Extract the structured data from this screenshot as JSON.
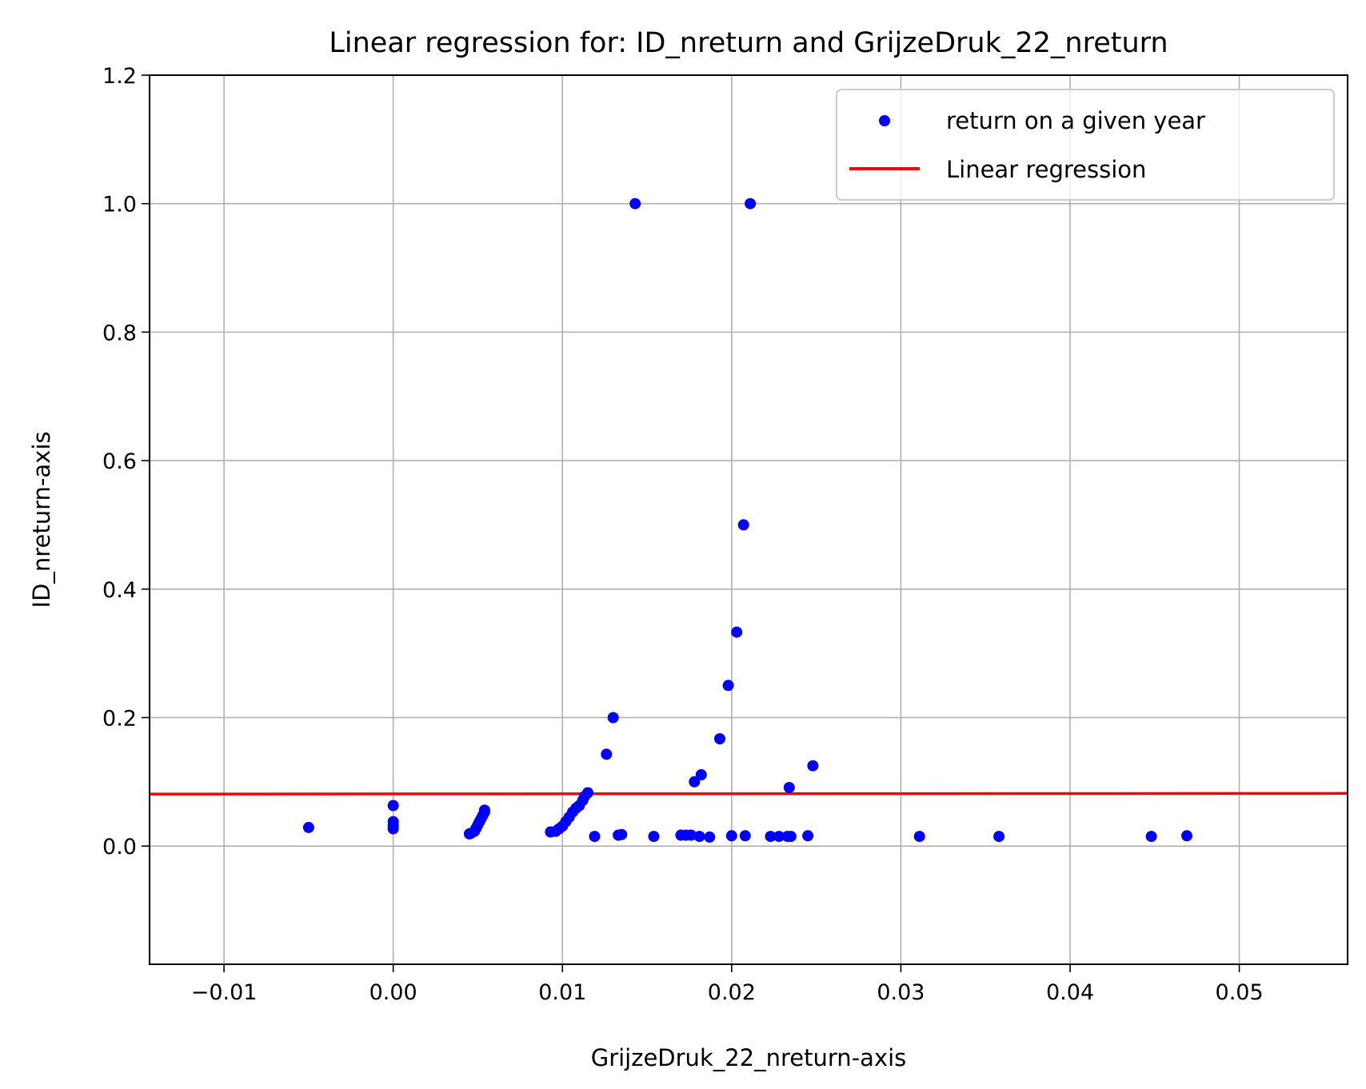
{
  "chart_data": {
    "type": "scatter",
    "title": "Linear regression for: ID_nreturn and GrijzeDruk_22_nreturn",
    "xlabel": "GrijzeDruk_22_nreturn-axis",
    "ylabel": "ID_nreturn-axis",
    "xlim": [
      -0.0144,
      0.0564
    ],
    "ylim": [
      -0.184,
      1.2
    ],
    "xticks": [
      -0.01,
      0.0,
      0.01,
      0.02,
      0.03,
      0.04,
      0.05
    ],
    "xtick_labels": [
      "−0.01",
      "0.00",
      "0.01",
      "0.02",
      "0.03",
      "0.04",
      "0.05"
    ],
    "yticks": [
      0.0,
      0.2,
      0.4,
      0.6,
      0.8,
      1.0,
      1.2
    ],
    "ytick_labels": [
      "0.0",
      "0.2",
      "0.4",
      "0.6",
      "0.8",
      "1.0",
      "1.2"
    ],
    "grid": true,
    "legend_position": "top-right",
    "series": [
      {
        "name": "return on a given year",
        "kind": "scatter",
        "color": "#0000ff",
        "points": [
          [
            -0.005,
            0.029
          ],
          [
            0.0,
            0.063
          ],
          [
            0.0,
            0.038
          ],
          [
            0.0,
            0.032
          ],
          [
            0.0,
            0.027
          ],
          [
            0.0045,
            0.019
          ],
          [
            0.0046,
            0.02
          ],
          [
            0.0048,
            0.023
          ],
          [
            0.0049,
            0.028
          ],
          [
            0.005,
            0.033
          ],
          [
            0.0051,
            0.038
          ],
          [
            0.0052,
            0.043
          ],
          [
            0.0053,
            0.048
          ],
          [
            0.0054,
            0.053
          ],
          [
            0.0054,
            0.056
          ],
          [
            0.0093,
            0.022
          ],
          [
            0.0096,
            0.023
          ],
          [
            0.0098,
            0.027
          ],
          [
            0.01,
            0.031
          ],
          [
            0.0102,
            0.038
          ],
          [
            0.0104,
            0.045
          ],
          [
            0.0106,
            0.053
          ],
          [
            0.0108,
            0.059
          ],
          [
            0.011,
            0.063
          ],
          [
            0.0112,
            0.071
          ],
          [
            0.0113,
            0.077
          ],
          [
            0.0115,
            0.083
          ],
          [
            0.0119,
            0.015
          ],
          [
            0.0126,
            0.143
          ],
          [
            0.013,
            0.2
          ],
          [
            0.0133,
            0.017
          ],
          [
            0.0135,
            0.018
          ],
          [
            0.0143,
            1.0
          ],
          [
            0.0154,
            0.015
          ],
          [
            0.017,
            0.017
          ],
          [
            0.0173,
            0.017
          ],
          [
            0.0176,
            0.017
          ],
          [
            0.0178,
            0.1
          ],
          [
            0.0181,
            0.015
          ],
          [
            0.0182,
            0.111
          ],
          [
            0.0187,
            0.014
          ],
          [
            0.0193,
            0.167
          ],
          [
            0.0198,
            0.25
          ],
          [
            0.02,
            0.016
          ],
          [
            0.0203,
            0.333
          ],
          [
            0.0207,
            0.5
          ],
          [
            0.0208,
            0.016
          ],
          [
            0.0211,
            1.0
          ],
          [
            0.0223,
            0.015
          ],
          [
            0.0228,
            0.015
          ],
          [
            0.0233,
            0.015
          ],
          [
            0.0234,
            0.091
          ],
          [
            0.0235,
            0.015
          ],
          [
            0.0245,
            0.016
          ],
          [
            0.0248,
            0.125
          ],
          [
            0.0311,
            0.015
          ],
          [
            0.0358,
            0.015
          ],
          [
            0.0448,
            0.015
          ],
          [
            0.0469,
            0.016
          ]
        ]
      },
      {
        "name": "Linear regression",
        "kind": "line",
        "color": "#ff0000",
        "points": [
          [
            -0.0144,
            0.081
          ],
          [
            0.0564,
            0.082
          ]
        ]
      }
    ]
  }
}
